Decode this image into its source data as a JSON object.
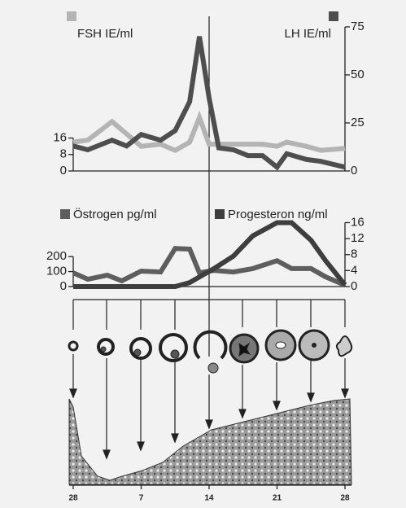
{
  "chart_data": [
    {
      "type": "line",
      "x": [
        0,
        1.5,
        4,
        5.5,
        7,
        9,
        10.5,
        12,
        13,
        14,
        15,
        16.5,
        18,
        19.5,
        21,
        22,
        24,
        25.5,
        28
      ],
      "xlim": [
        0,
        28
      ],
      "ylim": [
        0,
        70
      ],
      "yticks": [
        0,
        8,
        16
      ],
      "y2lim": [
        0,
        75
      ],
      "y2ticks": [
        0,
        25,
        50,
        75
      ],
      "series": [
        {
          "name": "FSH IE/ml",
          "color": "#b4b4b4",
          "values": [
            14,
            15,
            24,
            18,
            12,
            13,
            10,
            14,
            26,
            13,
            13,
            13,
            13,
            13,
            12,
            14,
            12,
            10,
            11
          ]
        },
        {
          "name": "LH IE/ml",
          "color": "#4e4e4e",
          "axis": "y2",
          "values": [
            13,
            11,
            16,
            13,
            19,
            16,
            21,
            36,
            70,
            38,
            12,
            11,
            8,
            8,
            2,
            9,
            6,
            5,
            2
          ]
        }
      ]
    },
    {
      "type": "line",
      "x": [
        0,
        1.5,
        3.5,
        5,
        7,
        9,
        10.5,
        12,
        13,
        14.5,
        16.5,
        18.5,
        21,
        22.5,
        24.5,
        26,
        28
      ],
      "xlim": [
        0,
        28
      ],
      "xticks": [
        {
          "value": 0,
          "label": "28"
        },
        7,
        14,
        21,
        28
      ],
      "ylim": [
        0,
        440
      ],
      "yticks": [
        0,
        100,
        200
      ],
      "y2lim": [
        0,
        16.5
      ],
      "y2ticks": [
        0,
        4,
        8,
        12,
        16
      ],
      "series": [
        {
          "name": "Östrogen pg/ml",
          "color": "#5e5e5e",
          "values": [
            92,
            49,
            76,
            38,
            103,
            97,
            254,
            250,
            92,
            108,
            97,
            120,
            173,
            120,
            120,
            65,
            10
          ]
        },
        {
          "name": "Progesteron ng/ml",
          "color": "#3e3e3e",
          "axis": "y2",
          "values": [
            0,
            0,
            0,
            0,
            0,
            0,
            0,
            1,
            2.4,
            4.5,
            7.6,
            12.7,
            16,
            16,
            11.6,
            6.5,
            0.4
          ]
        }
      ]
    }
  ]
}
